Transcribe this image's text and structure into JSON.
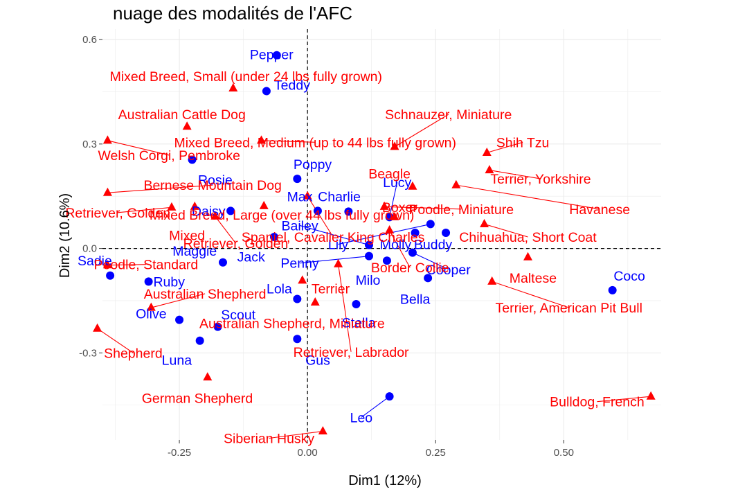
{
  "chart_data": {
    "type": "scatter",
    "title": "nuage des modalités de l'AFC",
    "xlabel": "Dim1 (12%)",
    "ylabel": "Dim2 (10.6%)",
    "xlim": [
      -0.4,
      0.69
    ],
    "ylim": [
      -0.55,
      0.63
    ],
    "x_ticks": [
      -0.25,
      0.0,
      0.25,
      0.5
    ],
    "x_tick_labels": [
      "-0.25",
      "0.00",
      "0.25",
      "0.50"
    ],
    "y_ticks": [
      -0.3,
      0.0,
      0.3,
      0.6
    ],
    "y_tick_labels": [
      "-0.3",
      "0.0",
      "0.3",
      "0.6"
    ],
    "reference_lines": {
      "x": 0,
      "y": 0,
      "style": "dashed"
    },
    "grid": true,
    "colors": {
      "names": "#0000ff",
      "breeds": "#ff0000",
      "grid": "#ebebeb"
    },
    "series": [
      {
        "marker": "circle",
        "color": "#0000ff",
        "points": [
          {
            "label": "Pepper",
            "x": -0.06,
            "y": 0.555,
            "lx": -0.07,
            "ly": 0.557
          },
          {
            "label": "Teddy",
            "x": -0.08,
            "y": 0.452,
            "lx": -0.03,
            "ly": 0.47
          },
          {
            "label": "Poppy",
            "x": -0.02,
            "y": 0.2,
            "lx": 0.01,
            "ly": 0.242
          },
          {
            "label": "Rosie",
            "x": -0.225,
            "y": 0.255,
            "lx": -0.18,
            "ly": 0.197
          },
          {
            "label": "Daisy",
            "x": -0.15,
            "y": 0.108,
            "lx": -0.193,
            "ly": 0.108
          },
          {
            "label": "Max",
            "x": 0.02,
            "y": 0.108,
            "lx": -0.015,
            "ly": 0.149
          },
          {
            "label": "Charlie",
            "x": 0.08,
            "y": 0.106,
            "lx": 0.062,
            "ly": 0.149
          },
          {
            "label": "Lucy",
            "x": 0.16,
            "y": 0.09,
            "lx": 0.175,
            "ly": 0.19
          },
          {
            "label": "Lily",
            "x": 0.24,
            "y": 0.07,
            "lx": 0.06,
            "ly": 0.012
          },
          {
            "label": "Bailey",
            "x": 0.12,
            "y": 0.01,
            "lx": -0.015,
            "ly": 0.066
          },
          {
            "label": "Molly",
            "x": 0.21,
            "y": 0.045,
            "lx": 0.172,
            "ly": 0.012
          },
          {
            "label": "Buddy",
            "x": 0.27,
            "y": 0.045,
            "lx": 0.245,
            "ly": 0.012
          },
          {
            "label": "Maggie",
            "x": -0.165,
            "y": -0.04,
            "lx": -0.22,
            "ly": -0.007
          },
          {
            "label": "Jack",
            "x": -0.065,
            "y": 0.033,
            "lx": -0.11,
            "ly": -0.024
          },
          {
            "label": "Sadie",
            "x": -0.385,
            "y": -0.078,
            "lx": -0.415,
            "ly": -0.035
          },
          {
            "label": "Ruby",
            "x": -0.31,
            "y": -0.095,
            "lx": -0.27,
            "ly": -0.095
          },
          {
            "label": "Penny",
            "x": 0.12,
            "y": -0.022,
            "lx": -0.015,
            "ly": -0.042
          },
          {
            "label": "Milo",
            "x": 0.155,
            "y": -0.035,
            "lx": 0.118,
            "ly": -0.09
          },
          {
            "label": "Cooper",
            "x": 0.205,
            "y": -0.012,
            "lx": 0.275,
            "ly": -0.06
          },
          {
            "label": "Lola",
            "x": -0.02,
            "y": -0.145,
            "lx": -0.055,
            "ly": -0.115
          },
          {
            "label": "Bella",
            "x": 0.235,
            "y": -0.085,
            "lx": 0.21,
            "ly": -0.145
          },
          {
            "label": "Coco",
            "x": 0.595,
            "y": -0.12,
            "lx": 0.628,
            "ly": -0.078
          },
          {
            "label": "Olive",
            "x": -0.25,
            "y": -0.205,
            "lx": -0.305,
            "ly": -0.187
          },
          {
            "label": "Scout",
            "x": -0.175,
            "y": -0.225,
            "lx": -0.135,
            "ly": -0.19
          },
          {
            "label": "Stella",
            "x": 0.095,
            "y": -0.16,
            "lx": 0.1,
            "ly": -0.213
          },
          {
            "label": "Luna",
            "x": -0.21,
            "y": -0.265,
            "lx": -0.255,
            "ly": -0.32
          },
          {
            "label": "Gus",
            "x": -0.02,
            "y": -0.26,
            "lx": 0.02,
            "ly": -0.32
          },
          {
            "label": "Leo",
            "x": 0.16,
            "y": -0.425,
            "lx": 0.105,
            "ly": -0.485
          }
        ]
      },
      {
        "marker": "triangle",
        "color": "#ff0000",
        "points": [
          {
            "label": "Mixed Breed, Small (under 24 lbs fully grown)",
            "x": -0.145,
            "y": 0.46,
            "lx": -0.12,
            "ly": 0.495
          },
          {
            "label": "Australian Cattle Dog",
            "x": -0.235,
            "y": 0.35,
            "lx": -0.245,
            "ly": 0.385
          },
          {
            "label": "Schnauzer, Miniature",
            "x": 0.17,
            "y": 0.292,
            "lx": 0.275,
            "ly": 0.385
          },
          {
            "label": "Mixed Breed, Medium (up to 44 lbs fully grown)",
            "x": -0.09,
            "y": 0.31,
            "lx": 0.015,
            "ly": 0.305
          },
          {
            "label": "Shih Tzu",
            "x": 0.35,
            "y": 0.275,
            "lx": 0.42,
            "ly": 0.305
          },
          {
            "label": "Welsh Corgi, Pembroke",
            "x": -0.39,
            "y": 0.31,
            "lx": -0.27,
            "ly": 0.268
          },
          {
            "label": "Terrier, Yorkshire",
            "x": 0.355,
            "y": 0.225,
            "lx": 0.455,
            "ly": 0.2
          },
          {
            "label": "Beagle",
            "x": 0.205,
            "y": 0.178,
            "lx": 0.16,
            "ly": 0.215
          },
          {
            "label": "Bernese Mountain Dog",
            "x": -0.39,
            "y": 0.16,
            "lx": -0.185,
            "ly": 0.182
          },
          {
            "label": "Retriever, Golden",
            "x": -0.265,
            "y": 0.118,
            "lx": -0.37,
            "ly": 0.103
          },
          {
            "label": "Mixed Breed, Large (over 44 lbs fully grown)",
            "x": -0.085,
            "y": 0.122,
            "lx": -0.05,
            "ly": 0.097
          },
          {
            "label": "Poodle, Miniature",
            "x": 0.15,
            "y": 0.12,
            "lx": 0.3,
            "ly": 0.113
          },
          {
            "label": "Havanese",
            "x": 0.29,
            "y": 0.182,
            "lx": 0.57,
            "ly": 0.113
          },
          {
            "label": "Boxer",
            "x": 0.17,
            "y": 0.09,
            "lx": 0.18,
            "ly": 0.119
          },
          {
            "label": "Mixed",
            "x": -0.22,
            "y": 0.12,
            "lx": -0.235,
            "ly": 0.038
          },
          {
            "label": "Spaniel, Cavalier King Charles",
            "x": 0.0,
            "y": 0.15,
            "lx": 0.05,
            "ly": 0.033
          },
          {
            "label": "Chihuahua, Short Coat",
            "x": 0.345,
            "y": 0.07,
            "lx": 0.43,
            "ly": 0.033
          },
          {
            "label": "Retriever, Golden",
            "x": -0.18,
            "y": 0.092,
            "lx": -0.14,
            "ly": 0.015
          },
          {
            "label": "Poodle, Standard",
            "x": -0.39,
            "y": -0.048,
            "lx": -0.315,
            "ly": -0.046
          },
          {
            "label": "Border Collie",
            "x": 0.16,
            "y": 0.052,
            "lx": 0.2,
            "ly": -0.055
          },
          {
            "label": "Maltese",
            "x": 0.43,
            "y": -0.025,
            "lx": 0.44,
            "ly": -0.084
          },
          {
            "label": "Australian Shepherd",
            "x": -0.305,
            "y": -0.17,
            "lx": -0.2,
            "ly": -0.13
          },
          {
            "label": "Terrier",
            "x": -0.01,
            "y": -0.092,
            "lx": 0.045,
            "ly": -0.115
          },
          {
            "label": "Terrier, American Pit Bull",
            "x": 0.36,
            "y": -0.095,
            "lx": 0.51,
            "ly": -0.17
          },
          {
            "label": "Australian Shepherd, Miniature",
            "x": 0.015,
            "y": -0.155,
            "lx": -0.03,
            "ly": -0.215
          },
          {
            "label": "Shepherd",
            "x": -0.41,
            "y": -0.23,
            "lx": -0.34,
            "ly": -0.3
          },
          {
            "label": "Retriever, Labrador",
            "x": 0.06,
            "y": -0.045,
            "lx": 0.085,
            "ly": -0.297
          },
          {
            "label": "German Shepherd",
            "x": -0.195,
            "y": -0.37,
            "lx": -0.215,
            "ly": -0.43
          },
          {
            "label": "Bulldog, French",
            "x": 0.67,
            "y": -0.425,
            "lx": 0.565,
            "ly": -0.44
          },
          {
            "label": "Siberian Husky",
            "x": 0.03,
            "y": -0.525,
            "lx": -0.075,
            "ly": -0.545
          }
        ]
      }
    ]
  }
}
